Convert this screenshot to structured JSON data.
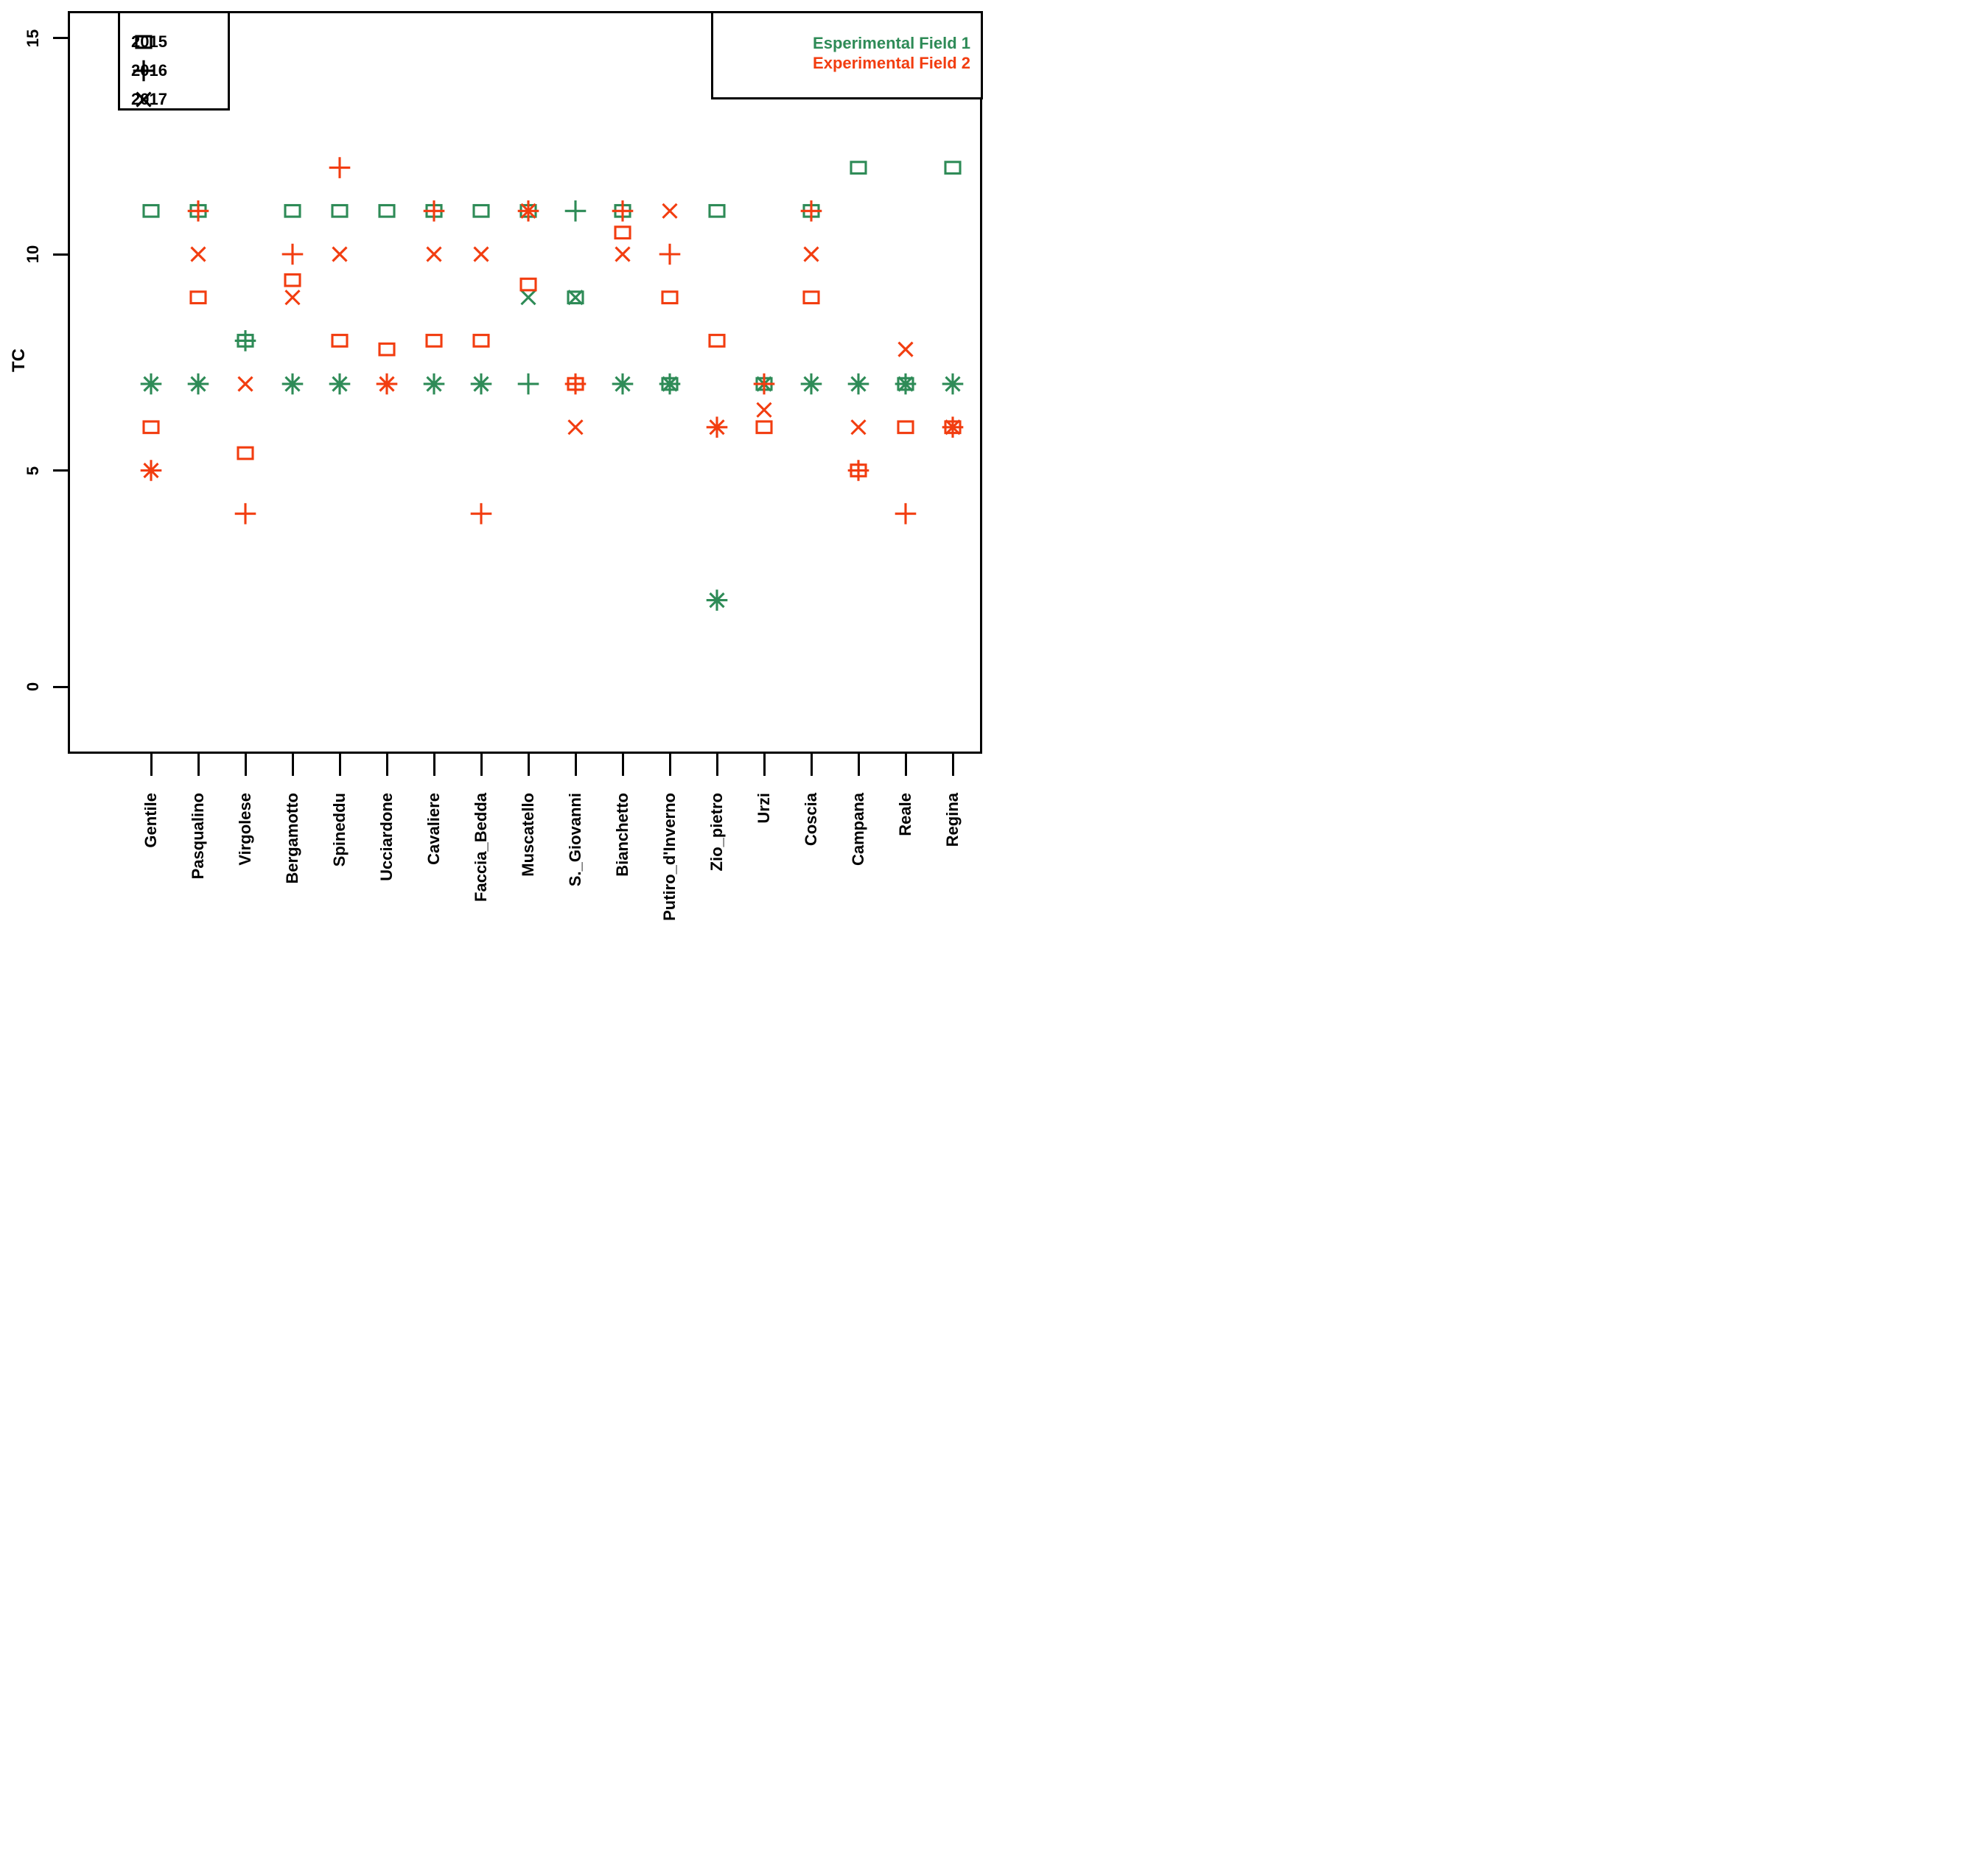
{
  "chart_data": {
    "type": "scatter",
    "title": "",
    "xlabel": "",
    "ylabel": "TC",
    "ylim": [
      0,
      15
    ],
    "y_ticks": [
      0,
      5,
      10,
      15
    ],
    "grid": false,
    "categories": [
      "Gentile",
      "Pasqualino",
      "Virgolese",
      "Bergamotto",
      "Spineddu",
      "Ucciardone",
      "Cavaliere",
      "Faccia_Bedda",
      "Muscatello",
      "S._Giovanni",
      "Bianchetto",
      "Putiro_d'Inverno",
      "Zio_pietro",
      "Urzi",
      "Coscia",
      "Campana",
      "Reale",
      "Regina"
    ],
    "marker_legend": [
      {
        "label": "2015",
        "marker": "square"
      },
      {
        "label": "2016",
        "marker": "plus"
      },
      {
        "label": "2017",
        "marker": "x"
      }
    ],
    "field_legend": [
      {
        "label": "Esperimental Field 1",
        "color": "#2E8B57"
      },
      {
        "label": "Experimental Field 2",
        "color": "#F23D10"
      }
    ],
    "series": [
      {
        "name": "Esperimental Field 1",
        "color": "#2E8B57",
        "years": [
          {
            "year": "2015",
            "marker": "square",
            "values": [
              11,
              11,
              8,
              11,
              11,
              11,
              11,
              11,
              11,
              9,
              11,
              7,
              11,
              7,
              11,
              12,
              7,
              12
            ]
          },
          {
            "year": "2016",
            "marker": "plus",
            "values": [
              7,
              7,
              8,
              7,
              7,
              null,
              7,
              7,
              7,
              11,
              7,
              7,
              2,
              null,
              7,
              7,
              7,
              7
            ]
          },
          {
            "year": "2017",
            "marker": "x",
            "values": [
              7,
              7,
              null,
              7,
              7,
              null,
              7,
              7,
              9,
              9,
              7,
              7,
              2,
              7,
              7,
              7,
              7,
              7
            ]
          }
        ]
      },
      {
        "name": "Experimental Field 2",
        "color": "#F23D10",
        "years": [
          {
            "year": "2015",
            "marker": "square",
            "values": [
              6,
              9,
              5.4,
              9.4,
              8,
              7.8,
              8,
              8,
              9.3,
              7,
              10.5,
              9,
              8,
              6,
              9,
              5,
              6,
              6
            ]
          },
          {
            "year": "2016",
            "marker": "plus",
            "values": [
              5,
              11,
              4,
              10,
              12,
              7,
              11,
              4,
              11,
              7,
              11,
              10,
              6,
              7,
              11,
              5,
              4,
              6
            ]
          },
          {
            "year": "2017",
            "marker": "x",
            "values": [
              5,
              10,
              7,
              9,
              10,
              7,
              10,
              10,
              11,
              6,
              10,
              11,
              6,
              6.4,
              10,
              6,
              7.8,
              6
            ]
          }
        ]
      }
    ]
  }
}
